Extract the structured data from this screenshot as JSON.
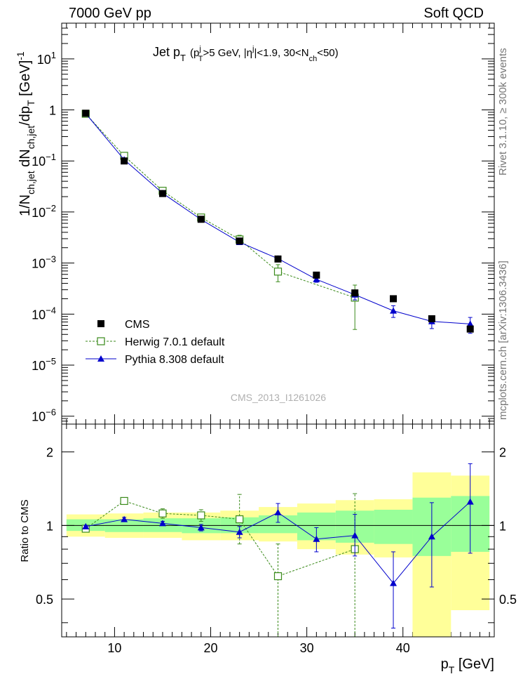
{
  "header": {
    "left": "7000 GeV pp",
    "right": "Soft QCD",
    "side_top": "Rivet 3.1.10, ≥ 300k events",
    "side_bottom": "mcplots.cern.ch [arXiv:1306.3436]"
  },
  "chart_data": [
    {
      "type": "line",
      "panel": "main",
      "title": "Jet p_T (p_T^j>5 GeV, |η^j|<1.9, 30<N_ch<50)",
      "title_parts": {
        "a": "Jet p",
        "b": "T",
        "c": "(p",
        "d": "j",
        "e": "T",
        "f": ">5 GeV, |η",
        "g": "j",
        "h": "|<1.9, 30<N",
        "i": "ch",
        "j": "<50)"
      },
      "ylabel": "1/N_ch,jet dN_ch,jet/dp_T [GeV]^-1",
      "ylabel_parts": {
        "a": "1/N",
        "b": "ch,jet",
        "c": " dN",
        "d": "ch,jet",
        "e": "/dp",
        "f": "T",
        "g": " [GeV]",
        "h": "-1"
      },
      "yscale": "log",
      "xlim": [
        4.5,
        49.5
      ],
      "ylim": [
        7e-07,
        50
      ],
      "x_ticks": [
        "10",
        "20",
        "30",
        "40"
      ],
      "y_ticks": [
        {
          "m": "10",
          "e": "1"
        },
        {
          "m": "1",
          "e": ""
        },
        {
          "m": "10",
          "e": "−1"
        },
        {
          "m": "10",
          "e": "−2"
        },
        {
          "m": "10",
          "e": "−3"
        },
        {
          "m": "10",
          "e": "−4"
        },
        {
          "m": "10",
          "e": "−5"
        },
        {
          "m": "10",
          "e": "−6"
        }
      ],
      "watermark": "CMS_2013_I1261026",
      "series": [
        {
          "name": "CMS",
          "color": "#000000",
          "marker": "square-filled",
          "x": [
            7,
            11,
            15,
            19,
            23,
            27,
            31,
            35,
            39,
            43,
            47
          ],
          "y": [
            0.86,
            0.1,
            0.023,
            0.0072,
            0.0027,
            0.0012,
            0.00058,
            0.00026,
            0.0002,
            8.1e-05,
            5.1e-05
          ]
        },
        {
          "name": "Herwig 7.0.1 default",
          "color": "#3a8a1a",
          "marker": "square-open",
          "x": [
            7,
            11,
            15,
            19,
            23,
            27,
            35
          ],
          "y": [
            0.84,
            0.126,
            0.026,
            0.0078,
            0.0029,
            0.00068,
            0.00021
          ],
          "yerr": [
            0.02,
            0.006,
            0.001,
            0.0004,
            0.0006,
            0.00025,
            0.00016
          ]
        },
        {
          "name": "Pythia 8.308 default",
          "color": "#0000cc",
          "marker": "triangle-filled",
          "x": [
            7,
            11,
            15,
            19,
            23,
            27,
            31,
            35,
            39,
            43,
            47
          ],
          "y": [
            0.85,
            0.106,
            0.0233,
            0.0071,
            0.00256,
            0.00122,
            0.00048,
            0.00024,
            0.000116,
            7.2e-05,
            6.4e-05
          ],
          "yerr": [
            0.02,
            0.002,
            0.0006,
            0.0002,
            0.0002,
            0.00012,
            6e-05,
            5e-05,
            3e-05,
            2e-05,
            2.2e-05
          ]
        }
      ]
    },
    {
      "type": "line",
      "panel": "ratio",
      "ylabel": "Ratio to CMS",
      "xlabel": "p_T [GeV]",
      "xlabel_parts": {
        "a": "p",
        "b": "T",
        "c": " [GeV]"
      },
      "yscale": "log",
      "xlim": [
        4.5,
        49.5
      ],
      "ylim": [
        0.35,
        2.6
      ],
      "x_ticks": [
        "10",
        "20",
        "30",
        "40"
      ],
      "y_ticks": [
        "2",
        "1",
        "0.5"
      ],
      "bin_edges": [
        5,
        9,
        13,
        17,
        21,
        25,
        29,
        33,
        37,
        41,
        45,
        49
      ],
      "yellow_band": {
        "low": [
          0.9,
          0.89,
          0.89,
          0.87,
          0.87,
          0.86,
          0.8,
          0.76,
          0.74,
          0.35,
          0.45
        ],
        "high": [
          1.11,
          1.12,
          1.13,
          1.13,
          1.15,
          1.19,
          1.23,
          1.27,
          1.28,
          1.65,
          1.6
        ]
      },
      "green_band": {
        "low": [
          0.95,
          0.94,
          0.94,
          0.93,
          0.93,
          0.93,
          0.87,
          0.85,
          0.84,
          0.75,
          0.78
        ],
        "high": [
          1.06,
          1.06,
          1.07,
          1.07,
          1.08,
          1.1,
          1.13,
          1.15,
          1.16,
          1.3,
          1.32
        ]
      },
      "series": [
        {
          "name": "Herwig 7.0.1 default",
          "color": "#3a8a1a",
          "marker": "square-open",
          "x": [
            7,
            11,
            15,
            19,
            23,
            27,
            35
          ],
          "y": [
            0.97,
            1.26,
            1.12,
            1.1,
            1.06,
            0.62,
            0.8
          ],
          "yerr_low": [
            0.02,
            0.04,
            0.05,
            0.06,
            0.22,
            0.5,
            0.5
          ],
          "yerr_high": [
            0.02,
            0.04,
            0.05,
            0.06,
            0.28,
            0.22,
            0.55
          ]
        },
        {
          "name": "Pythia 8.308 default",
          "color": "#0000cc",
          "marker": "triangle-filled",
          "x": [
            7,
            11,
            15,
            19,
            23,
            27,
            31,
            35,
            39,
            43,
            47
          ],
          "y": [
            0.99,
            1.06,
            1.02,
            0.98,
            0.94,
            1.13,
            0.88,
            0.91,
            0.58,
            0.9,
            1.25
          ],
          "yerr_low": [
            0.01,
            0.02,
            0.02,
            0.03,
            0.05,
            0.1,
            0.1,
            0.16,
            0.2,
            0.34,
            0.48
          ],
          "yerr_high": [
            0.01,
            0.02,
            0.02,
            0.03,
            0.05,
            0.1,
            0.1,
            0.2,
            0.2,
            0.34,
            0.54
          ]
        }
      ]
    }
  ]
}
